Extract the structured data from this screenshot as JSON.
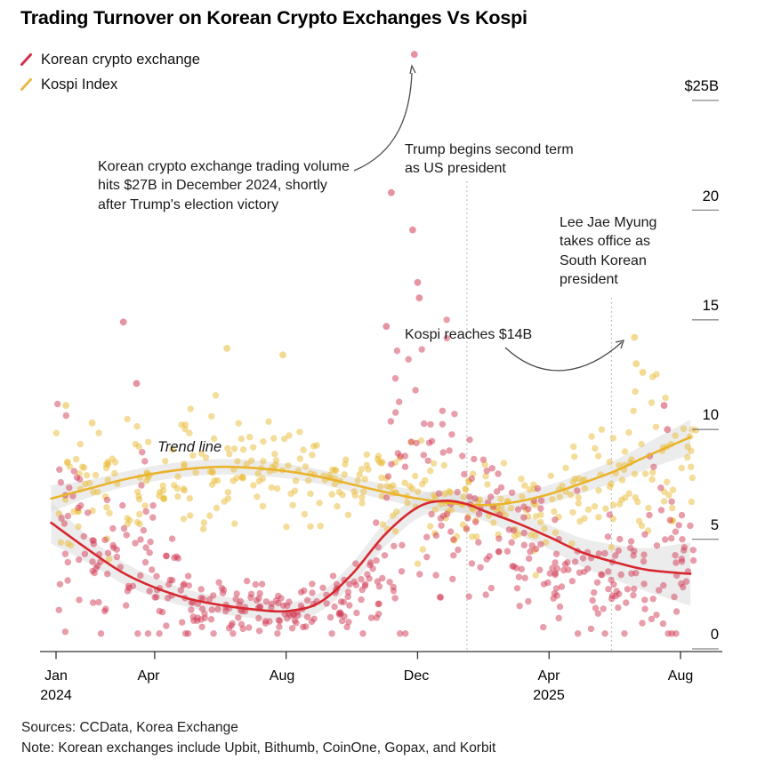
{
  "title": "Trading Turnover on Korean Crypto Exchanges Vs Kospi",
  "legend": {
    "items": [
      {
        "label": "Korean crypto exchange",
        "color": "#d0314b"
      },
      {
        "label": "Kospi Index",
        "color": "#e5bb4b"
      }
    ]
  },
  "annotations": {
    "crypto_peak": "Korean crypto exchange trading volume hits $27B in December 2024, shortly after Trump's election victory",
    "trump": "Trump begins second term as US president",
    "lee": "Lee Jae Myung takes office as South Korean president",
    "kospi_peak": "Kospi reaches $14B",
    "trend": "Trend line"
  },
  "footer": {
    "sources": "Sources: CCData, Korea Exchange",
    "note": "Note: Korean exchanges include Upbit, Bithumb, CoinOne, Gopax, and Korbit"
  },
  "chart_data": {
    "type": "scatter",
    "x_unit": "months since Jan 2024",
    "ylim": [
      0,
      27.5
    ],
    "grid": false,
    "legend_position": "top-left",
    "y_ticks": [
      {
        "v": 25,
        "label": "$25B"
      },
      {
        "v": 20,
        "label": "20"
      },
      {
        "v": 15,
        "label": "15"
      },
      {
        "v": 10,
        "label": "10"
      },
      {
        "v": 5,
        "label": "5"
      },
      {
        "v": 0,
        "label": "0"
      }
    ],
    "x_ticks": [
      {
        "m": 0,
        "label": "Jan",
        "sublabel": "2024"
      },
      {
        "m": 3,
        "label": "Apr",
        "sublabel": ""
      },
      {
        "m": 7,
        "label": "Aug",
        "sublabel": ""
      },
      {
        "m": 11,
        "label": "Dec",
        "sublabel": ""
      },
      {
        "m": 15,
        "label": "Apr",
        "sublabel": "2025"
      },
      {
        "m": 19,
        "label": "Aug",
        "sublabel": ""
      }
    ],
    "events": [
      {
        "m": 12.5,
        "annotation_key": "trump",
        "top_value": 21.3
      },
      {
        "m": 16.9,
        "annotation_key": "lee",
        "top_value": 16.0
      }
    ],
    "band_color": "#dcdcdc",
    "series": [
      {
        "name": "Kospi Index",
        "dot_color": "#e9bc36",
        "trend_color": "#eab32c",
        "clamp": [
          3.2,
          14.3
        ],
        "monthly_mean": [
          6.8,
          7.3,
          7.7,
          8.0,
          8.2,
          8.3,
          8.2,
          8.1,
          7.8,
          7.5,
          7.2,
          6.9,
          6.6,
          6.5,
          6.6,
          6.9,
          7.3,
          8.0,
          8.8,
          9.4
        ],
        "monthly_sd": [
          1.3,
          1.5,
          1.3,
          1.3,
          1.3,
          1.5,
          1.2,
          1.2,
          1.1,
          1.1,
          1.1,
          1.2,
          1.1,
          1.0,
          1.0,
          1.1,
          1.2,
          1.5,
          2.0,
          1.4
        ],
        "monthly_n": [
          21,
          20,
          21,
          21,
          21,
          20,
          22,
          21,
          20,
          21,
          21,
          20,
          21,
          19,
          20,
          21,
          21,
          22,
          22,
          11
        ],
        "highlights": [
          [
            17.6,
            14.2
          ],
          [
            17.65,
            13.0
          ],
          [
            17.85,
            12.6
          ],
          [
            5.2,
            13.7
          ],
          [
            6.9,
            13.4
          ],
          [
            0.3,
            11.1
          ],
          [
            1.1,
            10.3
          ]
        ],
        "trend": [
          [
            -0.15,
            6.85,
            0.6
          ],
          [
            1,
            7.3,
            0.4
          ],
          [
            2,
            7.7,
            0.35
          ],
          [
            3,
            8.0,
            0.35
          ],
          [
            4,
            8.2,
            0.35
          ],
          [
            5,
            8.3,
            0.35
          ],
          [
            6,
            8.25,
            0.35
          ],
          [
            7,
            8.1,
            0.33
          ],
          [
            8,
            7.85,
            0.33
          ],
          [
            9,
            7.5,
            0.33
          ],
          [
            10,
            7.15,
            0.35
          ],
          [
            11,
            6.85,
            0.38
          ],
          [
            12,
            6.65,
            0.4
          ],
          [
            13,
            6.55,
            0.4
          ],
          [
            14,
            6.7,
            0.4
          ],
          [
            15,
            7.05,
            0.42
          ],
          [
            16,
            7.55,
            0.45
          ],
          [
            17,
            8.1,
            0.5
          ],
          [
            18,
            8.8,
            0.6
          ],
          [
            19.3,
            9.65,
            0.8
          ]
        ]
      },
      {
        "name": "Korean crypto exchange",
        "dot_color": "#d23b55",
        "trend_color": "#d7282f",
        "clamp": [
          0.7,
          15.0
        ],
        "monthly_mean": [
          5.0,
          3.4,
          3.6,
          2.8,
          2.2,
          1.9,
          1.8,
          1.7,
          2.1,
          3.3,
          6.0,
          8.0,
          6.8,
          5.6,
          4.6,
          3.6,
          3.1,
          3.0,
          4.2,
          4.2
        ],
        "monthly_sd": [
          2.4,
          1.6,
          2.8,
          1.1,
          0.8,
          0.7,
          0.6,
          0.6,
          0.8,
          1.1,
          3.8,
          3.4,
          1.9,
          1.7,
          1.5,
          1.3,
          1.2,
          1.2,
          2.4,
          1.1
        ],
        "monthly_n": [
          26,
          25,
          26,
          26,
          26,
          26,
          26,
          26,
          26,
          26,
          26,
          26,
          26,
          24,
          26,
          26,
          26,
          26,
          26,
          13
        ],
        "highlights": [
          [
            10.9,
            27.1
          ],
          [
            10.2,
            20.8
          ],
          [
            10.85,
            19.1
          ],
          [
            11.0,
            16.7
          ],
          [
            11.05,
            16.0
          ],
          [
            10.05,
            14.7
          ],
          [
            2.05,
            14.9
          ],
          [
            2.45,
            12.1
          ],
          [
            18.5,
            11.1
          ],
          [
            18.6,
            10.0
          ]
        ],
        "trend": [
          [
            -0.15,
            5.75,
            0.95
          ],
          [
            1,
            4.5,
            0.6
          ],
          [
            2,
            3.5,
            0.5
          ],
          [
            3,
            2.8,
            0.45
          ],
          [
            4,
            2.3,
            0.4
          ],
          [
            5,
            2.0,
            0.4
          ],
          [
            6,
            1.8,
            0.4
          ],
          [
            7,
            1.72,
            0.4
          ],
          [
            8,
            2.1,
            0.42
          ],
          [
            9,
            3.4,
            0.5
          ],
          [
            10,
            5.2,
            0.55
          ],
          [
            11,
            6.45,
            0.5
          ],
          [
            11.8,
            6.75,
            0.48
          ],
          [
            12.5,
            6.6,
            0.45
          ],
          [
            13,
            6.3,
            0.45
          ],
          [
            14,
            5.75,
            0.5
          ],
          [
            15,
            5.1,
            0.55
          ],
          [
            16,
            4.4,
            0.65
          ],
          [
            17,
            3.95,
            0.8
          ],
          [
            18,
            3.6,
            1.0
          ],
          [
            19.3,
            3.42,
            1.45
          ]
        ]
      }
    ]
  }
}
